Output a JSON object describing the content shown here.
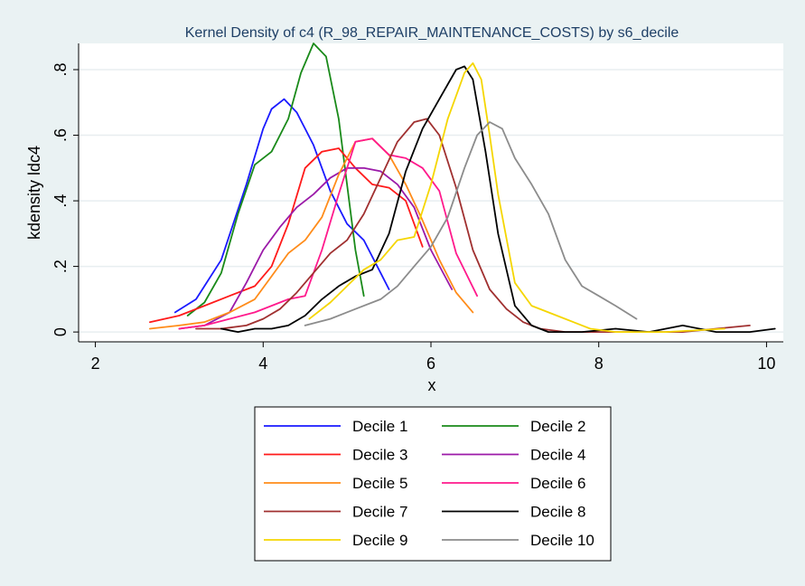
{
  "chart_data": {
    "type": "line",
    "title": "Kernel Density of c4 (R_98_REPAIR_MAINTENANCE_COSTS) by s6_decile",
    "xlabel": "x",
    "ylabel": "kdensity ldc4",
    "xlim": [
      1.8,
      10.2
    ],
    "ylim": [
      -0.03,
      0.88
    ],
    "xticks": [
      2,
      4,
      6,
      8,
      10
    ],
    "xtick_labels": [
      "2",
      "4",
      "6",
      "8",
      "10"
    ],
    "yticks": [
      0,
      0.2,
      0.4,
      0.6,
      0.8
    ],
    "ytick_labels": [
      "0",
      ".2",
      ".4",
      ".6",
      ".8"
    ],
    "grid": true,
    "legend_position": "bottom",
    "series": [
      {
        "name": "Decile 1",
        "color": "#1a1aff",
        "x": [
          2.95,
          3.2,
          3.5,
          3.8,
          4.0,
          4.1,
          4.25,
          4.4,
          4.6,
          4.8,
          5.0,
          5.2,
          5.4,
          5.5
        ],
        "y": [
          0.06,
          0.1,
          0.22,
          0.45,
          0.62,
          0.68,
          0.71,
          0.67,
          0.57,
          0.43,
          0.33,
          0.28,
          0.18,
          0.13
        ]
      },
      {
        "name": "Decile 2",
        "color": "#1a8a1a",
        "x": [
          3.1,
          3.3,
          3.5,
          3.7,
          3.9,
          4.1,
          4.3,
          4.45,
          4.6,
          4.75,
          4.9,
          5.0,
          5.1,
          5.2
        ],
        "y": [
          0.05,
          0.09,
          0.18,
          0.36,
          0.51,
          0.55,
          0.65,
          0.79,
          0.88,
          0.84,
          0.65,
          0.45,
          0.25,
          0.11
        ]
      },
      {
        "name": "Decile 3",
        "color": "#ff1a1a",
        "x": [
          2.65,
          3.0,
          3.3,
          3.6,
          3.9,
          4.1,
          4.3,
          4.5,
          4.7,
          4.9,
          5.1,
          5.3,
          5.5,
          5.7,
          5.9
        ],
        "y": [
          0.03,
          0.05,
          0.08,
          0.11,
          0.14,
          0.2,
          0.33,
          0.5,
          0.55,
          0.56,
          0.5,
          0.45,
          0.44,
          0.4,
          0.26
        ]
      },
      {
        "name": "Decile 4",
        "color": "#9b1aa8",
        "x": [
          3.0,
          3.3,
          3.6,
          3.8,
          4.0,
          4.2,
          4.4,
          4.6,
          4.8,
          5.0,
          5.2,
          5.4,
          5.6,
          5.8,
          6.0,
          6.25
        ],
        "y": [
          0.01,
          0.02,
          0.06,
          0.15,
          0.25,
          0.32,
          0.38,
          0.42,
          0.47,
          0.5,
          0.5,
          0.49,
          0.45,
          0.38,
          0.25,
          0.13
        ]
      },
      {
        "name": "Decile 5",
        "color": "#ff8c1a",
        "x": [
          2.65,
          3.0,
          3.3,
          3.6,
          3.9,
          4.1,
          4.3,
          4.5,
          4.7,
          4.9,
          5.1,
          5.3,
          5.5,
          5.7,
          5.9,
          6.1,
          6.3,
          6.5
        ],
        "y": [
          0.01,
          0.02,
          0.03,
          0.06,
          0.1,
          0.17,
          0.24,
          0.28,
          0.35,
          0.48,
          0.58,
          0.59,
          0.54,
          0.45,
          0.34,
          0.22,
          0.12,
          0.06
        ]
      },
      {
        "name": "Decile 6",
        "color": "#ff1a8c",
        "x": [
          3.0,
          3.3,
          3.6,
          3.9,
          4.1,
          4.3,
          4.5,
          4.7,
          4.9,
          5.1,
          5.3,
          5.5,
          5.7,
          5.9,
          6.1,
          6.3,
          6.55
        ],
        "y": [
          0.01,
          0.02,
          0.04,
          0.06,
          0.08,
          0.1,
          0.11,
          0.25,
          0.42,
          0.58,
          0.59,
          0.54,
          0.53,
          0.5,
          0.43,
          0.24,
          0.11
        ]
      },
      {
        "name": "Decile 7",
        "color": "#a03030",
        "x": [
          3.2,
          3.5,
          3.8,
          4.0,
          4.2,
          4.4,
          4.6,
          4.8,
          5.0,
          5.2,
          5.4,
          5.6,
          5.8,
          5.95,
          6.1,
          6.3,
          6.5,
          6.7,
          6.9,
          7.1,
          7.3,
          7.6,
          8.0,
          9.0,
          9.8
        ],
        "y": [
          0.01,
          0.01,
          0.02,
          0.04,
          0.07,
          0.12,
          0.18,
          0.24,
          0.28,
          0.36,
          0.47,
          0.58,
          0.64,
          0.65,
          0.6,
          0.44,
          0.25,
          0.13,
          0.07,
          0.03,
          0.01,
          0.0,
          0.0,
          0.0,
          0.02
        ]
      },
      {
        "name": "Decile 8",
        "color": "#000000",
        "x": [
          3.5,
          3.7,
          3.9,
          4.1,
          4.3,
          4.5,
          4.7,
          4.9,
          5.1,
          5.3,
          5.5,
          5.7,
          5.9,
          6.1,
          6.3,
          6.4,
          6.5,
          6.65,
          6.8,
          7.0,
          7.2,
          7.4,
          7.8,
          8.2,
          8.6,
          9.0,
          9.4,
          9.8,
          10.1
        ],
        "y": [
          0.01,
          0.0,
          0.01,
          0.01,
          0.02,
          0.05,
          0.1,
          0.14,
          0.17,
          0.19,
          0.3,
          0.49,
          0.62,
          0.71,
          0.8,
          0.81,
          0.77,
          0.55,
          0.3,
          0.08,
          0.02,
          0.0,
          0.0,
          0.01,
          0.0,
          0.02,
          0.0,
          0.0,
          0.01
        ]
      },
      {
        "name": "Decile 9",
        "color": "#f5d600",
        "x": [
          4.55,
          4.8,
          5.0,
          5.2,
          5.4,
          5.6,
          5.8,
          6.0,
          6.2,
          6.4,
          6.5,
          6.6,
          6.7,
          6.8,
          7.0,
          7.2,
          7.6,
          7.9,
          8.2,
          8.8,
          9.5
        ],
        "y": [
          0.04,
          0.09,
          0.14,
          0.19,
          0.22,
          0.28,
          0.29,
          0.45,
          0.65,
          0.79,
          0.82,
          0.77,
          0.6,
          0.42,
          0.15,
          0.08,
          0.04,
          0.01,
          0.0,
          0.0,
          0.01
        ]
      },
      {
        "name": "Decile 10",
        "color": "#8c8c8c",
        "x": [
          4.5,
          4.8,
          5.1,
          5.4,
          5.6,
          5.8,
          6.0,
          6.2,
          6.4,
          6.55,
          6.7,
          6.85,
          7.0,
          7.2,
          7.4,
          7.6,
          7.8,
          8.0,
          8.2,
          8.45
        ],
        "y": [
          0.02,
          0.04,
          0.07,
          0.1,
          0.14,
          0.2,
          0.26,
          0.35,
          0.5,
          0.6,
          0.64,
          0.62,
          0.53,
          0.45,
          0.36,
          0.22,
          0.14,
          0.11,
          0.08,
          0.04
        ]
      }
    ]
  }
}
